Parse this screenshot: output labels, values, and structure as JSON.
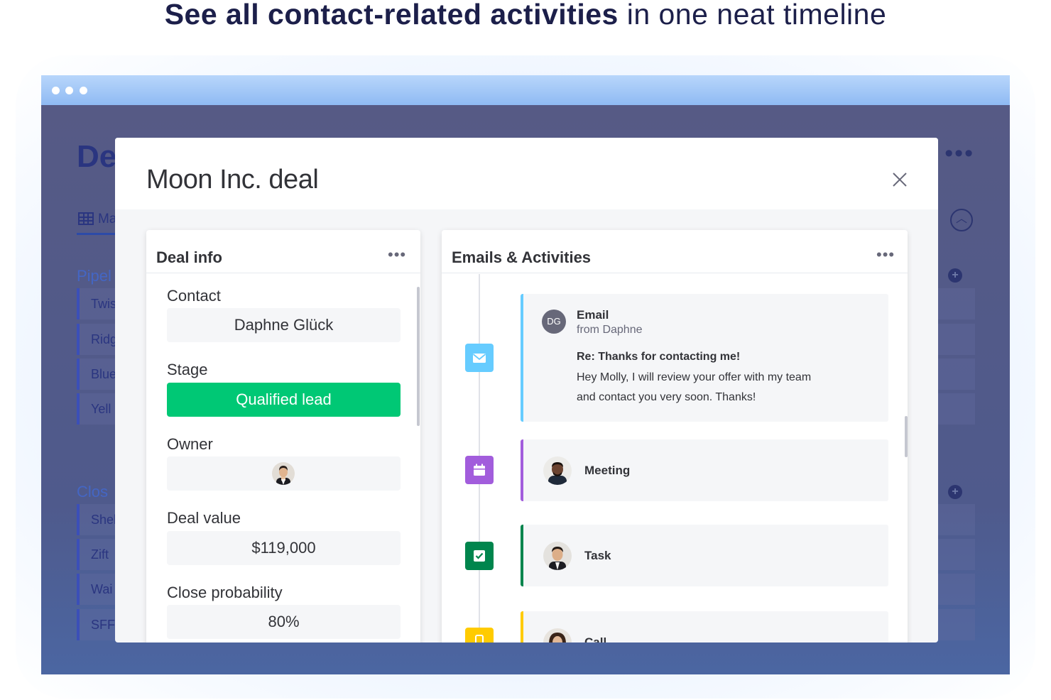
{
  "headline": {
    "bold": "See all contact-related activities",
    "rest": " in one neat timeline"
  },
  "background_app": {
    "title": "De",
    "tab_label": "Ma",
    "groups": [
      {
        "label": "Pipel",
        "rows": [
          "Twis",
          "Ridg",
          "Blue",
          "Yell"
        ]
      },
      {
        "label": "Clos",
        "rows": [
          "Shel",
          "Zift",
          "Wai",
          "SFF"
        ]
      }
    ]
  },
  "modal": {
    "title": "Moon Inc. deal",
    "deal_info": {
      "title": "Deal info",
      "menu": "•••",
      "fields": [
        {
          "label": "Contact",
          "value": "Daphne Glück"
        },
        {
          "label": "Stage",
          "value": "Qualified lead",
          "color": "#00c875"
        },
        {
          "label": "Owner",
          "value": ""
        },
        {
          "label": "Deal value",
          "value": "$119,000"
        },
        {
          "label": "Close probability",
          "value": "80%"
        }
      ]
    },
    "activities": {
      "title": "Emails & Activities",
      "menu": "•••",
      "email": {
        "icon": "envelope-icon",
        "color": "#66ccff",
        "type": "Email",
        "from": "from Daphne",
        "initials": "DG",
        "subject": "Re: Thanks for contacting me!",
        "body_line1": "Hey Molly, I will review your offer with my team",
        "body_line2": "and contact you very soon. Thanks!"
      },
      "meeting": {
        "icon": "calendar-icon",
        "color": "#a25ddc",
        "label": "Meeting"
      },
      "task": {
        "icon": "checkbox-icon",
        "color": "#00854d",
        "label": "Task"
      },
      "call": {
        "icon": "phone-icon",
        "color": "#ffcb00",
        "label": "Call"
      }
    }
  },
  "colors": {
    "headline": "#1c1f4a",
    "titlebar": "#9fc4f6",
    "overlay": "#555b86",
    "stage_green": "#00c875"
  }
}
